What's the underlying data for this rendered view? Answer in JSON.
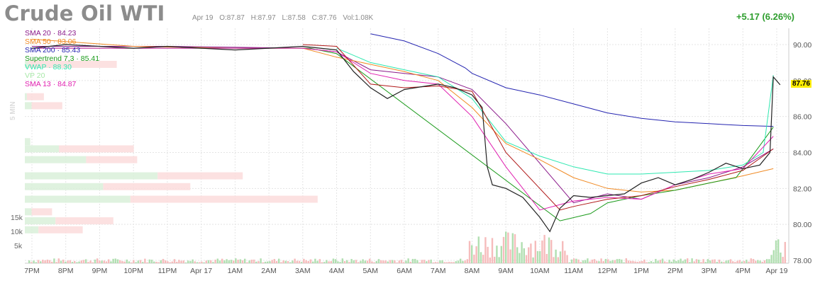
{
  "header": {
    "title": "Crude Oil WTI",
    "date": "Apr 19",
    "open": "O:87.87",
    "high": "H:87.97",
    "low": "L:87.58",
    "close": "C:87.76",
    "volume": "Vol:1.08K",
    "change": "+5.17 (6.26%)"
  },
  "indicators": [
    {
      "label": "SMA 20 · 84.23",
      "color": "#8b1a8b"
    },
    {
      "label": "SMA 50 · 83.06",
      "color": "#f08a24"
    },
    {
      "label": "SMA 200 · 85.43",
      "color": "#2424b0"
    },
    {
      "label": "Supertrend 7,3 · 85.41",
      "color": "#1a9a1a"
    },
    {
      "label": "VWAP · 88.30",
      "color": "#2ee8b0"
    },
    {
      "label": "VP 20",
      "color": "#a8e8a8"
    },
    {
      "label": "SMA 13 · 84.87",
      "color": "#e020b0"
    }
  ],
  "side_label": "5 MIN",
  "volume_labels": [
    "15k",
    "10k",
    "5k"
  ],
  "last_price": "87.76",
  "chart_data": {
    "type": "line",
    "y_ticks": [
      90.0,
      88.0,
      86.0,
      84.0,
      82.0,
      80.0,
      78.0
    ],
    "ylim": [
      78.0,
      90.5
    ],
    "x_ticks": [
      "7PM",
      "8PM",
      "9PM",
      "10PM",
      "11PM",
      "Apr 17",
      "1AM",
      "2AM",
      "3AM",
      "4AM",
      "5AM",
      "6AM",
      "7AM",
      "8AM",
      "9AM",
      "10AM",
      "11AM",
      "12PM",
      "1PM",
      "2PM",
      "3PM",
      "4PM",
      "Apr 19"
    ],
    "series": [
      {
        "color": "#8b1a8b",
        "points": [
          [
            0,
            89.9
          ],
          [
            4,
            89.9
          ],
          [
            8,
            89.8
          ],
          [
            9,
            89.6
          ],
          [
            10,
            88.6
          ],
          [
            11,
            88.4
          ],
          [
            12,
            88.2
          ],
          [
            13,
            87.5
          ],
          [
            14,
            85.6
          ],
          [
            15,
            83.4
          ],
          [
            16,
            81.2
          ],
          [
            17,
            81.7
          ],
          [
            18,
            81.4
          ],
          [
            19,
            82.2
          ],
          [
            20,
            82.6
          ],
          [
            21,
            83.2
          ],
          [
            21.9,
            84.2
          ]
        ]
      },
      {
        "color": "#f08a24",
        "points": [
          [
            0,
            90.3
          ],
          [
            3,
            89.9
          ],
          [
            6,
            89.8
          ],
          [
            8,
            89.8
          ],
          [
            9,
            89.3
          ],
          [
            10,
            88.9
          ],
          [
            11,
            88.5
          ],
          [
            12,
            88.0
          ],
          [
            13,
            86.5
          ],
          [
            14,
            84.5
          ],
          [
            15,
            83.6
          ],
          [
            16,
            82.6
          ],
          [
            17,
            82.0
          ],
          [
            18,
            81.8
          ],
          [
            19,
            81.9
          ],
          [
            20,
            82.3
          ],
          [
            21,
            82.7
          ],
          [
            21.9,
            83.1
          ]
        ]
      },
      {
        "color": "#2424b0",
        "points": [
          [
            10,
            90.6
          ],
          [
            11,
            90.2
          ],
          [
            12,
            89.5
          ],
          [
            12.8,
            88.7
          ],
          [
            13,
            88.4
          ],
          [
            14,
            87.6
          ],
          [
            15,
            87.2
          ],
          [
            16,
            86.7
          ],
          [
            17,
            86.2
          ],
          [
            18,
            85.9
          ],
          [
            19,
            85.7
          ],
          [
            20,
            85.6
          ],
          [
            21,
            85.5
          ],
          [
            21.9,
            85.45
          ]
        ]
      },
      {
        "color": "#1a9a1a",
        "points": [
          [
            0,
            89.8
          ],
          [
            8,
            89.8
          ],
          [
            8.2,
            89.8
          ],
          [
            9,
            89.5
          ],
          [
            15.6,
            80.2
          ],
          [
            16.5,
            80.6
          ],
          [
            17,
            81.2
          ],
          [
            18,
            81.6
          ],
          [
            19,
            81.9
          ],
          [
            20,
            82.3
          ],
          [
            20.8,
            82.6
          ],
          [
            21,
            83.1
          ],
          [
            21.9,
            85.41
          ]
        ]
      },
      {
        "color": "#2ee8b0",
        "points": [
          [
            9,
            89.8
          ],
          [
            10,
            89.0
          ],
          [
            11,
            88.6
          ],
          [
            12,
            88.2
          ],
          [
            13,
            87.0
          ],
          [
            14,
            84.6
          ],
          [
            15,
            83.8
          ],
          [
            16,
            83.2
          ],
          [
            17,
            82.8
          ],
          [
            18,
            82.8
          ],
          [
            19,
            82.9
          ],
          [
            20,
            83.0
          ],
          [
            21,
            83.3
          ],
          [
            21.6,
            84.0
          ],
          [
            21.9,
            88.3
          ]
        ]
      },
      {
        "color": "#e020b0",
        "points": [
          [
            0,
            89.8
          ],
          [
            8,
            89.8
          ],
          [
            9,
            89.6
          ],
          [
            10,
            88.4
          ],
          [
            11,
            88.0
          ],
          [
            12,
            87.8
          ],
          [
            13,
            86.0
          ],
          [
            14,
            83.2
          ],
          [
            15,
            80.8
          ],
          [
            16,
            81.3
          ],
          [
            17,
            81.5
          ],
          [
            18,
            81.4
          ],
          [
            19,
            82.2
          ],
          [
            20,
            82.8
          ],
          [
            21,
            83.1
          ],
          [
            21.9,
            84.9
          ]
        ]
      },
      {
        "color": "#b01818",
        "points": [
          [
            8,
            90.0
          ],
          [
            9,
            89.9
          ],
          [
            10,
            87.8
          ],
          [
            11,
            87.6
          ],
          [
            12,
            87.7
          ],
          [
            13,
            87.4
          ],
          [
            14,
            84.0
          ],
          [
            15,
            82.0
          ],
          [
            15.6,
            80.8
          ],
          [
            16,
            81.0
          ],
          [
            17,
            81.4
          ],
          [
            18,
            81.6
          ],
          [
            19,
            82.1
          ],
          [
            20,
            82.5
          ],
          [
            21,
            83.0
          ],
          [
            21.9,
            84.2
          ]
        ]
      },
      {
        "color": "#222222",
        "points": [
          [
            0,
            89.8
          ],
          [
            1,
            90.0
          ],
          [
            2,
            89.9
          ],
          [
            3,
            89.8
          ],
          [
            4,
            89.9
          ],
          [
            5,
            89.8
          ],
          [
            6,
            89.7
          ],
          [
            7,
            89.8
          ],
          [
            8,
            89.9
          ],
          [
            9,
            89.7
          ],
          [
            9.5,
            88.5
          ],
          [
            10,
            87.6
          ],
          [
            10.5,
            87.0
          ],
          [
            11,
            87.5
          ],
          [
            12,
            87.8
          ],
          [
            12.5,
            87.6
          ],
          [
            13,
            87.2
          ],
          [
            13.3,
            86.5
          ],
          [
            13.45,
            83.2
          ],
          [
            13.6,
            82.2
          ],
          [
            14,
            82.0
          ],
          [
            14.5,
            81.5
          ],
          [
            15,
            80.4
          ],
          [
            15.3,
            79.6
          ],
          [
            15.6,
            80.9
          ],
          [
            16,
            81.6
          ],
          [
            16.5,
            81.5
          ],
          [
            17,
            81.6
          ],
          [
            17.5,
            81.7
          ],
          [
            18,
            82.3
          ],
          [
            18.5,
            82.6
          ],
          [
            19,
            82.2
          ],
          [
            19.5,
            82.5
          ],
          [
            20,
            82.9
          ],
          [
            20.5,
            83.4
          ],
          [
            21,
            83.1
          ],
          [
            21.5,
            83.3
          ],
          [
            21.8,
            84.0
          ],
          [
            21.9,
            88.2
          ],
          [
            22.1,
            87.76
          ]
        ]
      }
    ],
    "volume_profile": [
      {
        "price": 88.9,
        "buy": 5,
        "sell": 130
      },
      {
        "price": 87.1,
        "buy": 3,
        "sell": 25
      },
      {
        "price": 86.6,
        "buy": 10,
        "sell": 45
      },
      {
        "price": 84.6,
        "buy": 8,
        "sell": 0
      },
      {
        "price": 84.2,
        "buy": 50,
        "sell": 110
      },
      {
        "price": 83.6,
        "buy": 90,
        "sell": 75
      },
      {
        "price": 82.7,
        "buy": 195,
        "sell": 125
      },
      {
        "price": 82.1,
        "buy": 115,
        "sell": 128
      },
      {
        "price": 81.4,
        "buy": 155,
        "sell": 275
      },
      {
        "price": 80.7,
        "buy": 10,
        "sell": 30
      },
      {
        "price": 80.2,
        "buy": 45,
        "sell": 85
      },
      {
        "price": 79.7,
        "buy": 20,
        "sell": 65
      }
    ]
  }
}
